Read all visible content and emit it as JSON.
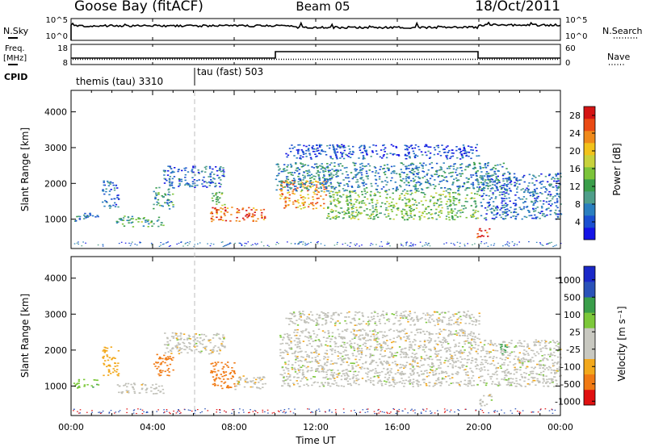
{
  "header": {
    "station": "Goose Bay (fitACF)",
    "beam": "Beam 05",
    "date": "18/Oct/2011"
  },
  "strip_labels": {
    "nsky": "N.Sky",
    "nsearch": "N.Search",
    "freq_line1": "Freq.",
    "freq_line2": "[MHz]",
    "nave": "Nave",
    "cpid": "CPID",
    "nsky_ticks": [
      "10^5",
      "10^0"
    ],
    "nsearch_ticks": [
      "10^5",
      "10^0"
    ],
    "freq_ticks": [
      "18",
      "8"
    ],
    "nave_ticks": [
      "60",
      "0"
    ]
  },
  "cpid_segments": [
    {
      "label": "themis (tau) 3310",
      "start_hour": 0
    },
    {
      "label": "tau (fast) 503",
      "start_hour": 6
    }
  ],
  "colors": {
    "power_scale": [
      "#1414e6",
      "#1a4fd1",
      "#2a7fbf",
      "#4f9e8a",
      "#3a9e4a",
      "#7cc43a",
      "#c8d23c",
      "#f2c21a",
      "#f08a1a",
      "#ea4a14",
      "#d41414"
    ],
    "velocity_scale": [
      "#e01010",
      "#f07a14",
      "#f2a81c",
      "#c8c8c0",
      "#c8c8c0",
      "#7cc83a",
      "#3a9e4a",
      "#2a52b8",
      "#1a28c8"
    ],
    "ground_scatter": "#c0c0b8"
  },
  "chart_data": [
    {
      "type": "heatmap",
      "name": "power",
      "xlabel": "Time UT",
      "ylabel": "Slant Range [km]",
      "xlim_hours": [
        0,
        24
      ],
      "ylim_km": [
        180,
        4600
      ],
      "x_tick_labels": [
        "00:00",
        "04:00",
        "08:00",
        "12:00",
        "16:00",
        "20:00",
        "00:00"
      ],
      "y_tick_values": [
        1000,
        2000,
        3000,
        4000
      ],
      "colorbar": {
        "label": "Power [dB]",
        "ticks": [
          4,
          8,
          12,
          16,
          20,
          24,
          28
        ],
        "range": [
          0,
          30
        ]
      },
      "echo_regions": [
        {
          "t": [
            0.1,
            1.3
          ],
          "r": [
            950,
            1200
          ],
          "power": 8
        },
        {
          "t": [
            1.5,
            2.3
          ],
          "r": [
            1300,
            2100
          ],
          "power": 6
        },
        {
          "t": [
            2.2,
            4.5
          ],
          "r": [
            800,
            1100
          ],
          "power": 12
        },
        {
          "t": [
            4.0,
            5.0
          ],
          "r": [
            1300,
            1900
          ],
          "power": 10
        },
        {
          "t": [
            4.5,
            7.5
          ],
          "r": [
            1900,
            2500
          ],
          "power": 6
        },
        {
          "t": [
            6.8,
            9.5
          ],
          "r": [
            950,
            1350
          ],
          "power": 26
        },
        {
          "t": [
            6.8,
            7.5
          ],
          "r": [
            1400,
            1800
          ],
          "power": 14
        },
        {
          "t": [
            10.2,
            12.5
          ],
          "r": [
            1300,
            2100
          ],
          "power": 22
        },
        {
          "t": [
            12.5,
            20.0
          ],
          "r": [
            1000,
            1800
          ],
          "power": 14
        },
        {
          "t": [
            10.0,
            21.5
          ],
          "r": [
            1800,
            2600
          ],
          "power": 8
        },
        {
          "t": [
            10.5,
            20.0
          ],
          "r": [
            2700,
            3100
          ],
          "power": 4
        },
        {
          "t": [
            19.8,
            20.5
          ],
          "r": [
            500,
            750
          ],
          "power": 28
        },
        {
          "t": [
            20.0,
            24.0
          ],
          "r": [
            1000,
            2300
          ],
          "power": 6
        }
      ]
    },
    {
      "type": "heatmap",
      "name": "velocity",
      "xlabel": "Time UT",
      "ylabel": "Slant Range [km]",
      "xlim_hours": [
        0,
        24
      ],
      "ylim_km": [
        180,
        4600
      ],
      "x_tick_labels": [
        "00:00",
        "04:00",
        "08:00",
        "12:00",
        "16:00",
        "20:00",
        "00:00"
      ],
      "y_tick_values": [
        1000,
        2000,
        3000,
        4000
      ],
      "colorbar": {
        "label": "Velocity [m s⁻¹]",
        "ticks": [
          "1000",
          "500",
          "100",
          "25",
          "-25",
          "-100",
          "-500",
          "-1000"
        ]
      },
      "echo_regions": [
        {
          "t": [
            0.1,
            1.3
          ],
          "r": [
            950,
            1200
          ],
          "velocity": 80
        },
        {
          "t": [
            1.5,
            2.3
          ],
          "r": [
            1300,
            2100
          ],
          "velocity": -60
        },
        {
          "t": [
            2.2,
            4.5
          ],
          "r": [
            800,
            1100
          ],
          "velocity": 0
        },
        {
          "t": [
            4.0,
            5.0
          ],
          "r": [
            1300,
            1900
          ],
          "velocity": -200
        },
        {
          "t": [
            4.5,
            7.5
          ],
          "r": [
            1900,
            2500
          ],
          "velocity": 0
        },
        {
          "t": [
            6.8,
            8.0
          ],
          "r": [
            950,
            1700
          ],
          "velocity": -300
        },
        {
          "t": [
            8.0,
            9.5
          ],
          "r": [
            900,
            1300
          ],
          "velocity": 0
        },
        {
          "t": [
            10.2,
            20.0
          ],
          "r": [
            1000,
            2600
          ],
          "velocity": 0
        },
        {
          "t": [
            10.5,
            20.0
          ],
          "r": [
            2700,
            3100
          ],
          "velocity": 0
        },
        {
          "t": [
            20.0,
            20.6
          ],
          "r": [
            450,
            800
          ],
          "velocity": 0
        },
        {
          "t": [
            21.0,
            21.5
          ],
          "r": [
            1900,
            2200
          ],
          "velocity": 150
        },
        {
          "t": [
            20.0,
            24.0
          ],
          "r": [
            1000,
            2300
          ],
          "velocity": 0
        }
      ]
    }
  ]
}
